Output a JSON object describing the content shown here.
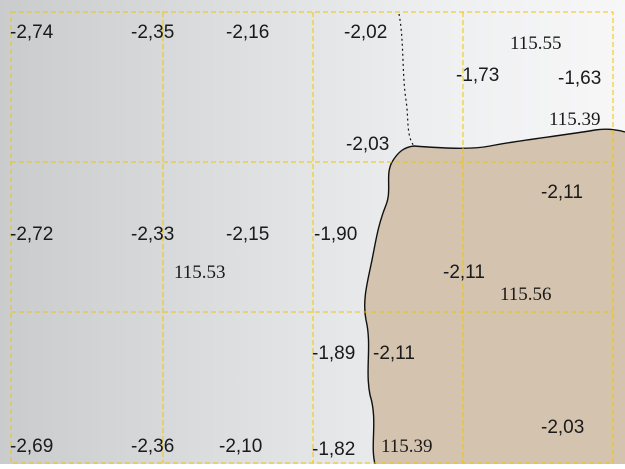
{
  "colors": {
    "terrain_fill": "#d4c3ae",
    "grid_line": "#f2c400",
    "coast_line": "#111111",
    "label_text": "#1a1a1a",
    "gradient_left": "#c9cbcd",
    "gradient_right": "#f7f7f8"
  },
  "map": {
    "grid_columns": 4,
    "grid_rows": 3,
    "land_label": "",
    "gradient_labels": [
      {
        "id": "g1",
        "text": "-2,74",
        "font": "sans"
      },
      {
        "id": "g2",
        "text": "-2,35",
        "font": "sans"
      },
      {
        "id": "g3",
        "text": "-2,16",
        "font": "sans"
      },
      {
        "id": "g4",
        "text": "-2,02",
        "font": "sans"
      },
      {
        "id": "g5",
        "text": "-1,73",
        "font": "sans"
      },
      {
        "id": "g6",
        "text": "-1,63",
        "font": "sans"
      },
      {
        "id": "g7",
        "text": "-2,03",
        "font": "sans"
      },
      {
        "id": "g8",
        "text": "-2,11",
        "font": "sans"
      },
      {
        "id": "g9",
        "text": "-2,72",
        "font": "sans"
      },
      {
        "id": "g10",
        "text": "-2,33",
        "font": "sans"
      },
      {
        "id": "g11",
        "text": "-2,15",
        "font": "sans"
      },
      {
        "id": "g12",
        "text": "-1,90",
        "font": "sans"
      },
      {
        "id": "g13",
        "text": "-2,11",
        "font": "sans"
      },
      {
        "id": "g14",
        "text": "-1,89",
        "font": "sans"
      },
      {
        "id": "g15",
        "text": "-2,11",
        "font": "sans"
      },
      {
        "id": "g16",
        "text": "-2,69",
        "font": "sans"
      },
      {
        "id": "g17",
        "text": "-2,36",
        "font": "sans"
      },
      {
        "id": "g18",
        "text": "-2,10",
        "font": "sans"
      },
      {
        "id": "g19",
        "text": "-1,82",
        "font": "sans"
      },
      {
        "id": "g20",
        "text": "-2,03",
        "font": "sans"
      }
    ],
    "elevation_labels": [
      {
        "id": "e1",
        "text": "115.55",
        "font": "serif"
      },
      {
        "id": "e2",
        "text": "115.39",
        "font": "serif"
      },
      {
        "id": "e3",
        "text": "115.53",
        "font": "serif"
      },
      {
        "id": "e4",
        "text": "115.56",
        "font": "serif"
      },
      {
        "id": "e5",
        "text": "115.39",
        "font": "serif"
      }
    ]
  }
}
